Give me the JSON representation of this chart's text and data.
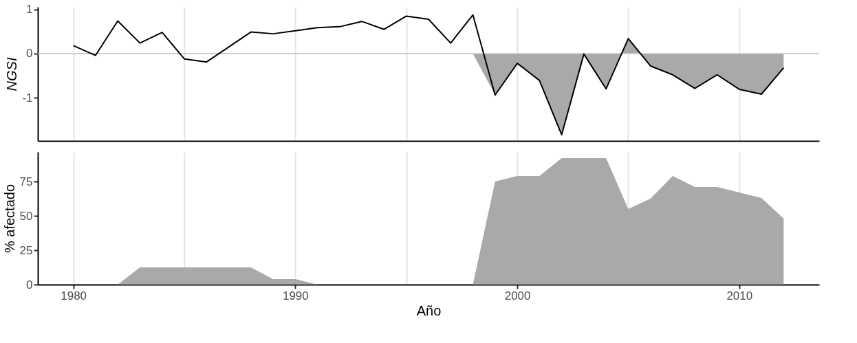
{
  "chart_data": [
    {
      "type": "line",
      "ylabel": "NGSI",
      "x": [
        1980,
        1981,
        1982,
        1983,
        1984,
        1985,
        1986,
        1987,
        1988,
        1989,
        1990,
        1991,
        1992,
        1993,
        1994,
        1995,
        1996,
        1997,
        1998,
        1999,
        2000,
        2001,
        2002,
        2003,
        2004,
        2005,
        2006,
        2007,
        2008,
        2009,
        2010,
        2011,
        2012
      ],
      "series": [
        {
          "type": "area",
          "color": "#a9a9a9",
          "x": [
            1998,
            1999,
            2000,
            2001,
            2002,
            2003,
            2004,
            2005,
            2006,
            2007,
            2008,
            2009,
            2010,
            2011,
            2012
          ],
          "values": [
            0,
            -0.94,
            -0.22,
            -0.61,
            -1.84,
            -0.01,
            -0.8,
            0.34,
            -0.28,
            -0.48,
            -0.79,
            -0.48,
            -0.81,
            -0.92,
            -0.32
          ]
        },
        {
          "color": "#000000",
          "values": [
            0.18,
            -0.04,
            0.74,
            0.24,
            0.48,
            -0.12,
            -0.19,
            0.15,
            0.49,
            0.45,
            0.52,
            0.59,
            0.61,
            0.73,
            0.55,
            0.85,
            0.78,
            0.24,
            0.88,
            -0.94,
            -0.22,
            -0.61,
            -1.84,
            -0.01,
            -0.8,
            0.34,
            -0.28,
            -0.48,
            -0.79,
            -0.48,
            -0.81,
            -0.92,
            -0.32
          ]
        }
      ],
      "ref_lines": [
        {
          "axis": "y",
          "value": 0,
          "color": "#cccccc"
        }
      ],
      "xlim": [
        1978.4,
        2013.6
      ],
      "xticks": [
        1980,
        {
          "value": 1985,
          "label": null
        },
        1990,
        {
          "value": 1995,
          "label": null
        },
        2000,
        {
          "value": 2005,
          "label": null
        },
        2010
      ],
      "ylim": [
        -1.98,
        1.06
      ],
      "yticks": [
        -1,
        0,
        1
      ],
      "grid": "x",
      "tick_labels": "y"
    },
    {
      "type": "area",
      "xlabel": "Año",
      "ylabel": "% afectado",
      "x": [
        1980,
        1981,
        1982,
        1983,
        1984,
        1985,
        1986,
        1987,
        1988,
        1989,
        1990,
        1991,
        1992,
        1993,
        1994,
        1995,
        1996,
        1997,
        1998,
        1999,
        2000,
        2001,
        2002,
        2003,
        2004,
        2005,
        2006,
        2007,
        2008,
        2009,
        2010,
        2011,
        2012
      ],
      "series": [
        {
          "color": "#a9a9a9",
          "values": [
            0,
            0,
            0,
            12.5,
            12.5,
            12.5,
            12.5,
            12.5,
            12.5,
            4,
            4,
            0,
            0,
            0,
            0,
            0,
            0,
            0,
            0,
            75,
            79,
            79,
            92,
            92,
            92,
            55,
            62.5,
            79,
            71,
            71,
            67,
            63,
            48
          ]
        }
      ],
      "xlim": [
        1978.4,
        2013.6
      ],
      "xticks": [
        1980,
        {
          "value": 1985,
          "label": null
        },
        1990,
        {
          "value": 1995,
          "label": null
        },
        2000,
        {
          "value": 2005,
          "label": null
        },
        2010
      ],
      "ylim": [
        0,
        96.5
      ],
      "yticks": [
        0,
        25,
        50,
        75
      ],
      "grid": "x"
    }
  ]
}
